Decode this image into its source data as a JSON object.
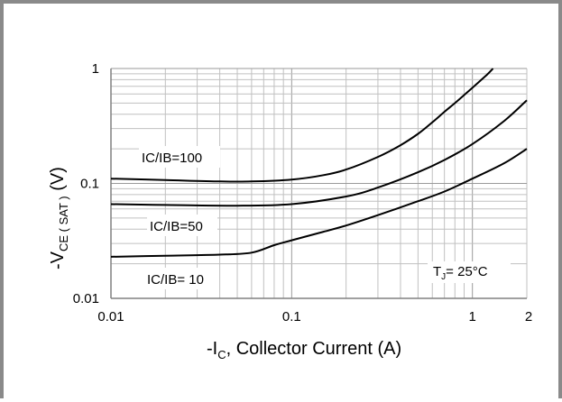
{
  "chart_data": {
    "type": "line",
    "x_scale": "log",
    "y_scale": "log",
    "xlim": [
      0.01,
      2
    ],
    "ylim": [
      0.01,
      1
    ],
    "grid": true,
    "x_ticks": [
      {
        "value": 0.01,
        "label": "0.01"
      },
      {
        "value": 0.1,
        "label": "0.1"
      },
      {
        "value": 1,
        "label": "1"
      },
      {
        "value": 2,
        "label": "2"
      }
    ],
    "y_ticks": [
      {
        "value": 0.01,
        "label": "0.01"
      },
      {
        "value": 0.1,
        "label": "0.1"
      },
      {
        "value": 1,
        "label": "1"
      }
    ],
    "xlabel": {
      "prefix": "-I",
      "sub": "C",
      "suffix": ", Collector Current (A)"
    },
    "ylabel": {
      "prefix": "-V",
      "sub": "CE ( SAT )",
      "suffix": "  (V)"
    },
    "annotation": {
      "prefix": "T",
      "sub": "J",
      "suffix": "= 25°C"
    },
    "series": [
      {
        "name": "IC/IB=100",
        "x": [
          0.01,
          0.02,
          0.04,
          0.06,
          0.1,
          0.15,
          0.2,
          0.3,
          0.4,
          0.5,
          0.6,
          0.7,
          0.8,
          1.0,
          1.2,
          1.3
        ],
        "y": [
          0.11,
          0.107,
          0.104,
          0.104,
          0.108,
          0.118,
          0.132,
          0.17,
          0.215,
          0.27,
          0.34,
          0.42,
          0.5,
          0.68,
          0.88,
          1.0
        ]
      },
      {
        "name": "IC/IB=50",
        "x": [
          0.01,
          0.02,
          0.05,
          0.1,
          0.2,
          0.3,
          0.5,
          0.7,
          1.0,
          1.5,
          2.0
        ],
        "y": [
          0.066,
          0.065,
          0.064,
          0.066,
          0.077,
          0.092,
          0.125,
          0.16,
          0.22,
          0.35,
          0.53
        ]
      },
      {
        "name": "IC/IB= 10",
        "x": [
          0.01,
          0.02,
          0.04,
          0.06,
          0.08,
          0.1,
          0.15,
          0.2,
          0.3,
          0.5,
          0.7,
          1.0,
          1.5,
          2.0
        ],
        "y": [
          0.023,
          0.0235,
          0.024,
          0.025,
          0.029,
          0.032,
          0.038,
          0.043,
          0.053,
          0.07,
          0.085,
          0.11,
          0.15,
          0.2
        ]
      }
    ],
    "colors": {
      "curve": "#000000",
      "grid": "#c0c0c0",
      "axis": "#808080",
      "frame": "#8a8a8a"
    }
  }
}
